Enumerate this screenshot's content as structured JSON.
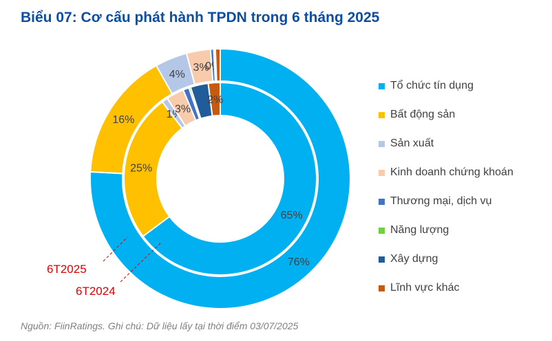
{
  "title": "Biểu 07: Cơ cấu phát hành TPDN trong 6 tháng 2025",
  "source": "Nguồn: FiinRatings. Ghi chú: Dữ liệu lấy tại thời điểm 03/07/2025",
  "chart_data": {
    "type": "doughnut",
    "categories": [
      "Tổ chức tín dụng",
      "Bất động sản",
      "Sản xuất",
      "Kinh doanh chứng khoán",
      "Thương mại, dịch vụ",
      "Năng lượng",
      "Xây dựng",
      "Lĩnh vực khác"
    ],
    "colors": [
      "#00B0F0",
      "#FFC000",
      "#B4C7E7",
      "#F8CBAD",
      "#4472C4",
      "#70D040",
      "#1F5C99",
      "#C55A11"
    ],
    "legend_position": "right",
    "series": [
      {
        "name": "6T2025",
        "ring": "outer",
        "values": [
          76,
          16,
          4,
          3,
          0.4,
          0.1,
          0.1,
          0.6
        ],
        "labels": [
          "76%",
          "16%",
          "4%",
          "3%",
          "0%",
          null,
          null,
          null
        ]
      },
      {
        "name": "6T2024",
        "ring": "inner",
        "values": [
          65,
          25,
          1,
          3,
          1,
          0.3,
          3,
          2
        ],
        "labels": [
          "65%",
          "25%",
          "1%",
          "3%",
          null,
          null,
          null,
          "2%"
        ]
      }
    ]
  }
}
